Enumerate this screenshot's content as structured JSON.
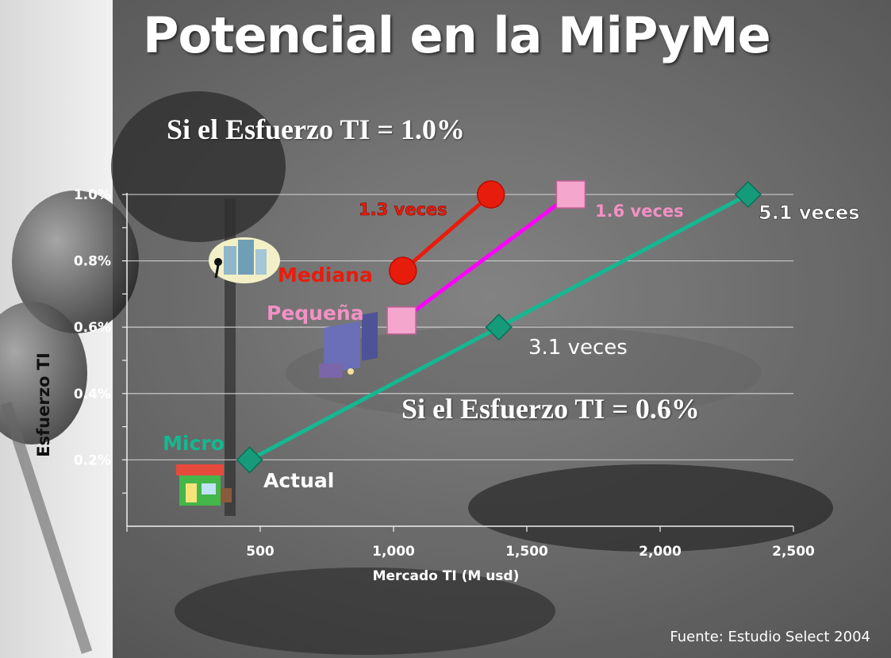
{
  "title": "Potencial en la MiPyMe",
  "note_top": "Si el Esfuerzo TI = 1.0%",
  "note_mid": "Si el Esfuerzo  TI = 0.6%",
  "source": "Fuente: Estudio Select 2004",
  "colors": {
    "Mediana": "#e81c0c",
    "Pequeña": "#ff00ff",
    "Micro": "#14b890",
    "pequena_marker": "#f4a6cc",
    "pequena_label": "#f291c4"
  },
  "icons": [
    "office-buildings-icon",
    "office-tower-icon",
    "storefront-icon"
  ],
  "chart_data": {
    "type": "line",
    "xlabel": "Mercado TI (M usd)",
    "ylabel": "Esfuerzo   TI",
    "xlim": [
      0,
      2500
    ],
    "ylim": [
      0,
      1.0
    ],
    "x_ticks": [
      {
        "value": 500,
        "label": "500"
      },
      {
        "value": 1000,
        "label": "1,000"
      },
      {
        "value": 1500,
        "label": "1,500"
      },
      {
        "value": 2000,
        "label": "2,000"
      },
      {
        "value": 2500,
        "label": "2,500"
      }
    ],
    "y_ticks": [
      {
        "value": 0.2,
        "label": "0.2%"
      },
      {
        "value": 0.4,
        "label": "0.4%"
      },
      {
        "value": 0.6,
        "label": "0.6%"
      },
      {
        "value": 0.8,
        "label": "0.8%"
      },
      {
        "value": 1.0,
        "label": "1.0%"
      }
    ],
    "series": [
      {
        "name": "Mediana",
        "marker": "circle",
        "points": [
          [
            1035,
            0.77
          ],
          [
            1365,
            1.0
          ]
        ],
        "annotation": "1.3 veces"
      },
      {
        "name": "Pequeña",
        "marker": "square",
        "points": [
          [
            1030,
            0.62
          ],
          [
            1665,
            1.0
          ]
        ],
        "annotation": "1.6 veces"
      },
      {
        "name": "Micro",
        "marker": "diamond",
        "points": [
          [
            460,
            0.2
          ],
          [
            1395,
            0.6
          ],
          [
            2330,
            1.0
          ]
        ],
        "point_labels": [
          "Actual",
          "3.1 veces",
          "5.1 veces"
        ]
      }
    ]
  }
}
